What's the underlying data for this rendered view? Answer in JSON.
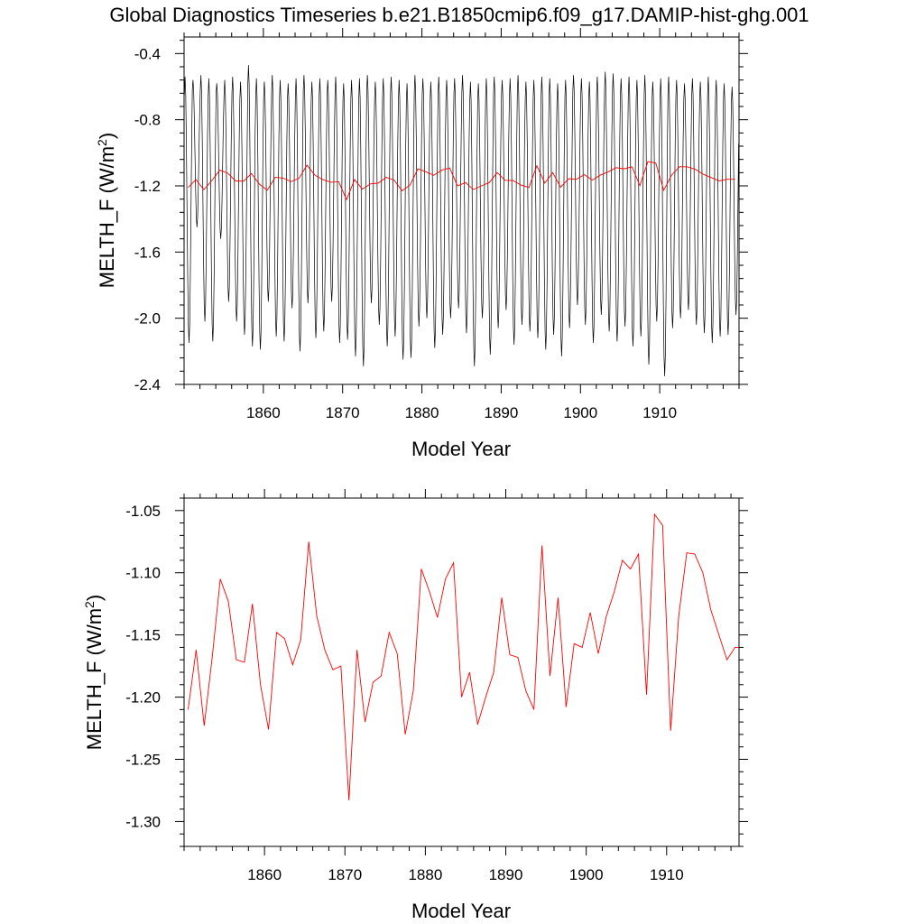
{
  "title": "Global Diagnostics Timeseries b.e21.B1850cmip6.f09_g17.DAMIP-hist-ghg.001",
  "colors": {
    "monthly": "#000000",
    "annual": "#ff0000",
    "axes": "#000000"
  },
  "chart_data": [
    {
      "type": "line",
      "title": "Global Diagnostics Timeseries b.e21.B1850cmip6.f09_g17.DAMIP-hist-ghg.001",
      "xlabel": "Model Year",
      "ylabel_main": "MELTH_F (W/m",
      "ylabel_sup": "2",
      "ylabel_close": ")",
      "xlim": [
        1850,
        1920
      ],
      "ylim": [
        -2.4,
        -0.3
      ],
      "x_ticks": [
        1860,
        1870,
        1880,
        1890,
        1900,
        1910
      ],
      "x_tick_labels": [
        "1860",
        "1870",
        "1880",
        "1890",
        "1900",
        "1910"
      ],
      "y_ticks": [
        -2.4,
        -2.0,
        -1.6,
        -1.2,
        -0.8,
        -0.4
      ],
      "y_tick_labels": [
        "-2.4",
        "-2.0",
        "-1.6",
        "-1.2",
        "-0.8",
        "-0.4"
      ],
      "grid": false,
      "series": [
        {
          "color": "#000000",
          "x_start": 1850.04,
          "x_step": 0.08333,
          "seasonal_max": [
            -0.54,
            -0.56,
            -0.53,
            -0.55,
            -0.58,
            -0.56,
            -0.54,
            -0.57,
            -0.47,
            -0.55,
            -0.57,
            -0.53,
            -0.56,
            -0.58,
            -0.55,
            -0.53,
            -0.57,
            -0.55,
            -0.56,
            -0.54,
            -0.58,
            -0.56,
            -0.55,
            -0.53,
            -0.57,
            -0.55,
            -0.54,
            -0.56,
            -0.58,
            -0.53,
            -0.55,
            -0.57,
            -0.54,
            -0.56,
            -0.55,
            -0.53,
            -0.57,
            -0.58,
            -0.55,
            -0.54,
            -0.56,
            -0.55,
            -0.53,
            -0.57,
            -0.56,
            -0.54,
            -0.55,
            -0.58,
            -0.56,
            -0.53,
            -0.55,
            -0.57,
            -0.54,
            -0.51,
            -0.52,
            -0.55,
            -0.54,
            -0.56,
            -0.53,
            -0.57,
            -0.55,
            -0.54,
            -0.56,
            -0.58,
            -0.55,
            -0.57,
            -0.54,
            -0.56,
            -0.58,
            -0.6
          ],
          "seasonal_min": [
            -2.15,
            -1.45,
            -2.02,
            -2.14,
            -1.52,
            -1.9,
            -2.02,
            -2.1,
            -2.17,
            -2.19,
            -1.9,
            -2.11,
            -2.14,
            -1.94,
            -2.2,
            -1.91,
            -2.12,
            -2.08,
            -1.9,
            -2.15,
            -2.13,
            -2.23,
            -2.29,
            -1.91,
            -2.04,
            -2.17,
            -2.11,
            -2.25,
            -2.24,
            -2.05,
            -2.0,
            -2.18,
            -2.1,
            -2.0,
            -1.94,
            -2.09,
            -2.29,
            -2.0,
            -2.22,
            -2.06,
            -1.95,
            -2.16,
            -2.04,
            -2.08,
            -2.12,
            -2.19,
            -2.1,
            -2.23,
            -2.06,
            -1.92,
            -2.04,
            -2.15,
            -1.98,
            -2.08,
            -2.14,
            -2.05,
            -2.17,
            -2.11,
            -2.28,
            -2.02,
            -2.35,
            -2.06,
            -2.0,
            -1.95,
            -2.04,
            -2.09,
            -2.15,
            -2.11,
            -2.1,
            -1.98
          ]
        },
        {
          "color": "#ff0000",
          "x": [
            1850.5,
            1851.5,
            1852.5,
            1853.5,
            1854.5,
            1855.5,
            1856.5,
            1857.5,
            1858.5,
            1859.5,
            1860.5,
            1861.5,
            1862.5,
            1863.5,
            1864.5,
            1865.5,
            1866.5,
            1867.5,
            1868.5,
            1869.5,
            1870.5,
            1871.5,
            1872.5,
            1873.5,
            1874.5,
            1875.5,
            1876.5,
            1877.5,
            1878.5,
            1879.5,
            1880.5,
            1881.5,
            1882.5,
            1883.5,
            1884.5,
            1885.5,
            1886.5,
            1887.5,
            1888.5,
            1889.5,
            1890.5,
            1891.5,
            1892.5,
            1893.5,
            1894.5,
            1895.5,
            1896.5,
            1897.5,
            1898.5,
            1899.5,
            1900.5,
            1901.5,
            1902.5,
            1903.5,
            1904.5,
            1905.5,
            1906.5,
            1907.5,
            1908.5,
            1909.5,
            1910.5,
            1911.5,
            1912.5,
            1913.5,
            1914.5,
            1915.5,
            1916.5,
            1917.5,
            1918.5,
            1919.5
          ],
          "values": [
            -1.21,
            -1.162,
            -1.223,
            -1.168,
            -1.105,
            -1.123,
            -1.17,
            -1.172,
            -1.125,
            -1.19,
            -1.226,
            -1.148,
            -1.153,
            -1.174,
            -1.154,
            -1.075,
            -1.135,
            -1.162,
            -1.178,
            -1.175,
            -1.283,
            -1.162,
            -1.22,
            -1.188,
            -1.183,
            -1.148,
            -1.165,
            -1.23,
            -1.195,
            -1.097,
            -1.115,
            -1.136,
            -1.105,
            -1.092,
            -1.2,
            -1.18,
            -1.222,
            -1.2,
            -1.18,
            -1.12,
            -1.166,
            -1.168,
            -1.195,
            -1.21,
            -1.078,
            -1.183,
            -1.12,
            -1.208,
            -1.157,
            -1.16,
            -1.132,
            -1.165,
            -1.135,
            -1.115,
            -1.09,
            -1.097,
            -1.085,
            -1.198,
            -1.053,
            -1.062,
            -1.227,
            -1.135,
            -1.084,
            -1.085,
            -1.1,
            -1.13,
            -1.15,
            -1.17,
            -1.16,
            -1.16
          ]
        }
      ]
    },
    {
      "type": "line",
      "xlabel": "Model Year",
      "ylabel_main": "MELTH_F (W/m",
      "ylabel_sup": "2",
      "ylabel_close": ")",
      "xlim": [
        1850,
        1919
      ],
      "ylim": [
        -1.32,
        -1.04
      ],
      "x_ticks": [
        1860,
        1870,
        1880,
        1890,
        1900,
        1910
      ],
      "x_tick_labels": [
        "1860",
        "1870",
        "1880",
        "1890",
        "1900",
        "1910"
      ],
      "y_ticks": [
        -1.3,
        -1.25,
        -1.2,
        -1.15,
        -1.1,
        -1.05
      ],
      "y_tick_labels": [
        "-1.30",
        "-1.25",
        "-1.20",
        "-1.15",
        "-1.10",
        "-1.05"
      ],
      "grid": false,
      "series": [
        {
          "color": "#ff0000",
          "x": [
            1850.5,
            1851.5,
            1852.5,
            1853.5,
            1854.5,
            1855.5,
            1856.5,
            1857.5,
            1858.5,
            1859.5,
            1860.5,
            1861.5,
            1862.5,
            1863.5,
            1864.5,
            1865.5,
            1866.5,
            1867.5,
            1868.5,
            1869.5,
            1870.5,
            1871.5,
            1872.5,
            1873.5,
            1874.5,
            1875.5,
            1876.5,
            1877.5,
            1878.5,
            1879.5,
            1880.5,
            1881.5,
            1882.5,
            1883.5,
            1884.5,
            1885.5,
            1886.5,
            1887.5,
            1888.5,
            1889.5,
            1890.5,
            1891.5,
            1892.5,
            1893.5,
            1894.5,
            1895.5,
            1896.5,
            1897.5,
            1898.5,
            1899.5,
            1900.5,
            1901.5,
            1902.5,
            1903.5,
            1904.5,
            1905.5,
            1906.5,
            1907.5,
            1908.5,
            1909.5,
            1910.5,
            1911.5,
            1912.5,
            1913.5,
            1914.5,
            1915.5,
            1916.5,
            1917.5,
            1918.5,
            1919.5
          ],
          "values": [
            -1.21,
            -1.162,
            -1.223,
            -1.168,
            -1.105,
            -1.123,
            -1.17,
            -1.172,
            -1.125,
            -1.19,
            -1.226,
            -1.148,
            -1.153,
            -1.174,
            -1.154,
            -1.075,
            -1.135,
            -1.162,
            -1.178,
            -1.175,
            -1.283,
            -1.162,
            -1.22,
            -1.188,
            -1.183,
            -1.148,
            -1.165,
            -1.23,
            -1.195,
            -1.097,
            -1.115,
            -1.136,
            -1.105,
            -1.092,
            -1.2,
            -1.18,
            -1.222,
            -1.2,
            -1.18,
            -1.12,
            -1.166,
            -1.168,
            -1.195,
            -1.21,
            -1.078,
            -1.183,
            -1.12,
            -1.208,
            -1.157,
            -1.16,
            -1.132,
            -1.165,
            -1.135,
            -1.115,
            -1.09,
            -1.097,
            -1.085,
            -1.198,
            -1.053,
            -1.062,
            -1.227,
            -1.135,
            -1.084,
            -1.085,
            -1.1,
            -1.13,
            -1.15,
            -1.17,
            -1.16,
            -1.16
          ]
        }
      ]
    }
  ]
}
